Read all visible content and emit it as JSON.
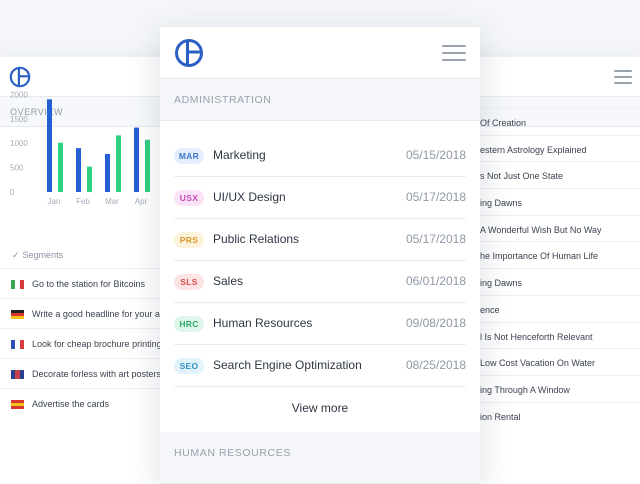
{
  "back": {
    "overview_label": "OVERVIEW",
    "chart_data": {
      "type": "bar",
      "categories": [
        "Jan",
        "Feb",
        "Mar",
        "Apr"
      ],
      "series": [
        {
          "values": [
            1900,
            900,
            780,
            1320
          ]
        },
        {
          "values": [
            1010,
            520,
            1160,
            1070
          ]
        }
      ],
      "yticks": [
        "0",
        "500",
        "1000",
        "1500",
        "2000",
        "2500"
      ],
      "ylim": [
        0,
        2500
      ],
      "colors": [
        "#2561d4",
        "#2fd07f"
      ]
    },
    "segments_label": "Segments",
    "segments": [
      {
        "flag": "it",
        "text": "Go to the station for Bitcoins"
      },
      {
        "flag": "de",
        "text": "Write a good headline for your ad"
      },
      {
        "flag": "fr",
        "text": "Look for cheap brochure printing"
      },
      {
        "flag": "gb",
        "text": "Decorate forless with art posters"
      },
      {
        "flag": "es",
        "text": "Advertise the cards"
      }
    ],
    "right_items": [
      "Of Creation",
      "estern Astrology Explained",
      "s Not Just One State",
      "ing Dawns",
      "A Wonderful Wish But No Way",
      "he Importance Of Human Life",
      "ing Dawns",
      "ence",
      "l Is Not Henceforth Relevant",
      "Low Cost Vacation On Water",
      "ing Through A Window",
      "ion Rental"
    ]
  },
  "card": {
    "section1": "ADMINISTRATION",
    "rows": [
      {
        "code": "MAR",
        "name": "Marketing",
        "date": "05/15/2018",
        "bg": "#e4eefc",
        "fg": "#3f78c8"
      },
      {
        "code": "USX",
        "name": "UI/UX Design",
        "date": "05/17/2018",
        "bg": "#fbe3f7",
        "fg": "#c64bb8"
      },
      {
        "code": "PRS",
        "name": "Public Relations",
        "date": "05/17/2018",
        "bg": "#fdf2dc",
        "fg": "#d59a2b"
      },
      {
        "code": "SLS",
        "name": "Sales",
        "date": "06/01/2018",
        "bg": "#fde4e4",
        "fg": "#d65050"
      },
      {
        "code": "HRC",
        "name": "Human Resources",
        "date": "09/08/2018",
        "bg": "#dff6ea",
        "fg": "#2ea86a"
      },
      {
        "code": "SEO",
        "name": "Search Engine Optimization",
        "date": "08/25/2018",
        "bg": "#e2f3fb",
        "fg": "#3593c4"
      }
    ],
    "view_more": "View more",
    "section2": "HUMAN RESOURCES"
  }
}
